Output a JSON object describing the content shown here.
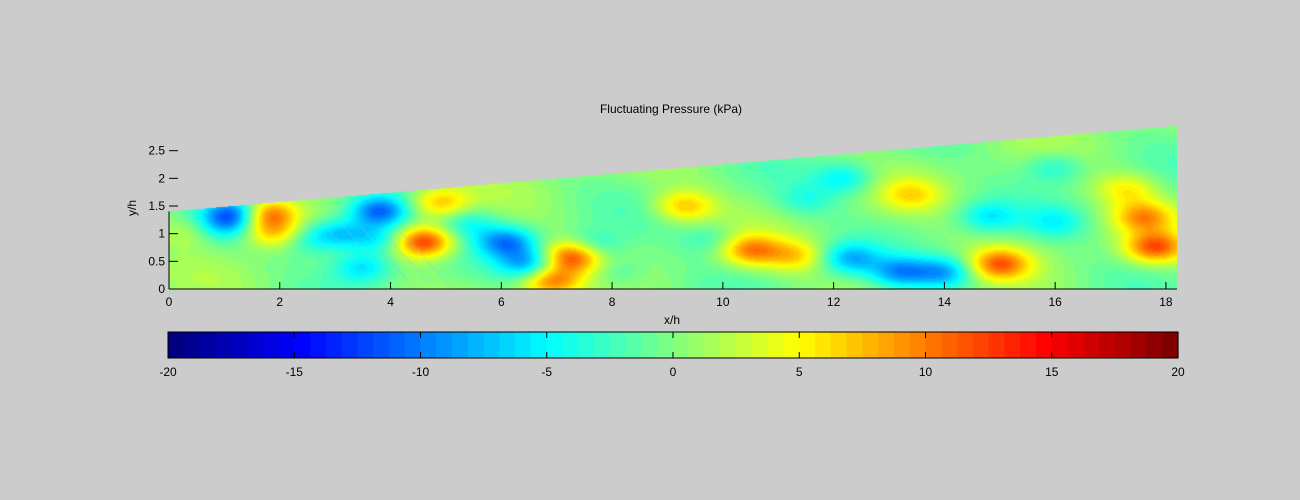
{
  "chart_data": {
    "type": "heatmap",
    "title": "Fluctuating Pressure (kPa)",
    "xlabel": "x/h",
    "ylabel": "y/h",
    "xlim": [
      0,
      18.2
    ],
    "ylim": [
      0,
      3
    ],
    "x_ticks": [
      0,
      2,
      4,
      6,
      8,
      10,
      12,
      14,
      16,
      18
    ],
    "x_tick_labels": [
      "0",
      "2",
      "4",
      "6",
      "8",
      "10",
      "12",
      "14",
      "16",
      "18"
    ],
    "y_ticks": [
      0,
      0.5,
      1,
      1.5,
      2,
      2.5
    ],
    "y_tick_labels": [
      "0",
      "0.5",
      "1",
      "1.5",
      "2",
      "2.5"
    ],
    "domain_top_boundary": {
      "x": [
        0,
        18.2
      ],
      "y": [
        1.4,
        2.95
      ]
    },
    "colorbar": {
      "colormap": "jet",
      "clim": [
        -20,
        20
      ],
      "n_levels": 64,
      "ticks": [
        -20,
        -15,
        -10,
        -5,
        0,
        5,
        10,
        15,
        20
      ],
      "tick_labels": [
        "-20",
        "-15",
        "-10",
        "-5",
        "0",
        "5",
        "10",
        "15",
        "20"
      ]
    },
    "field_features": [
      {
        "x": 1.2,
        "y": 1.35,
        "value": -11
      },
      {
        "x": 1.75,
        "y": 1.35,
        "value": 12
      },
      {
        "x": 1.9,
        "y": 1.0,
        "value": 7
      },
      {
        "x": 0.85,
        "y": 1.1,
        "value": -5
      },
      {
        "x": 0.5,
        "y": 1.05,
        "value": 4
      },
      {
        "x": 2.5,
        "y": 0.9,
        "value": -4
      },
      {
        "x": 3.1,
        "y": 1.0,
        "value": -7
      },
      {
        "x": 3.5,
        "y": 0.4,
        "value": -6
      },
      {
        "x": 3.8,
        "y": 1.4,
        "value": -11
      },
      {
        "x": 3.8,
        "y": 0.9,
        "value": -6
      },
      {
        "x": 4.6,
        "y": 0.85,
        "value": 13
      },
      {
        "x": 4.9,
        "y": 1.55,
        "value": 7
      },
      {
        "x": 5.4,
        "y": 1.2,
        "value": -4
      },
      {
        "x": 6.1,
        "y": 0.85,
        "value": -9
      },
      {
        "x": 6.5,
        "y": 0.45,
        "value": -8
      },
      {
        "x": 6.9,
        "y": 0.15,
        "value": 10
      },
      {
        "x": 7.3,
        "y": 0.6,
        "value": 13
      },
      {
        "x": 7.6,
        "y": 0.75,
        "value": -6
      },
      {
        "x": 8.1,
        "y": 0.3,
        "value": -3
      },
      {
        "x": 9.3,
        "y": 1.5,
        "value": 7
      },
      {
        "x": 9.8,
        "y": 0.9,
        "value": -3
      },
      {
        "x": 10.5,
        "y": 0.7,
        "value": 9
      },
      {
        "x": 11.3,
        "y": 0.6,
        "value": 6
      },
      {
        "x": 12.3,
        "y": 0.55,
        "value": -7
      },
      {
        "x": 13.2,
        "y": 0.3,
        "value": -8
      },
      {
        "x": 14.0,
        "y": 0.3,
        "value": -8
      },
      {
        "x": 12.2,
        "y": 2.0,
        "value": -5
      },
      {
        "x": 11.5,
        "y": 1.6,
        "value": -3
      },
      {
        "x": 13.4,
        "y": 1.7,
        "value": 5
      },
      {
        "x": 14.8,
        "y": 1.3,
        "value": -5
      },
      {
        "x": 15.0,
        "y": 0.45,
        "value": 10
      },
      {
        "x": 16.0,
        "y": 1.2,
        "value": -4
      },
      {
        "x": 16.0,
        "y": 2.2,
        "value": -4
      },
      {
        "x": 17.3,
        "y": 1.8,
        "value": 5
      },
      {
        "x": 17.8,
        "y": 0.75,
        "value": 11
      },
      {
        "x": 17.6,
        "y": 1.3,
        "value": 8
      }
    ]
  }
}
